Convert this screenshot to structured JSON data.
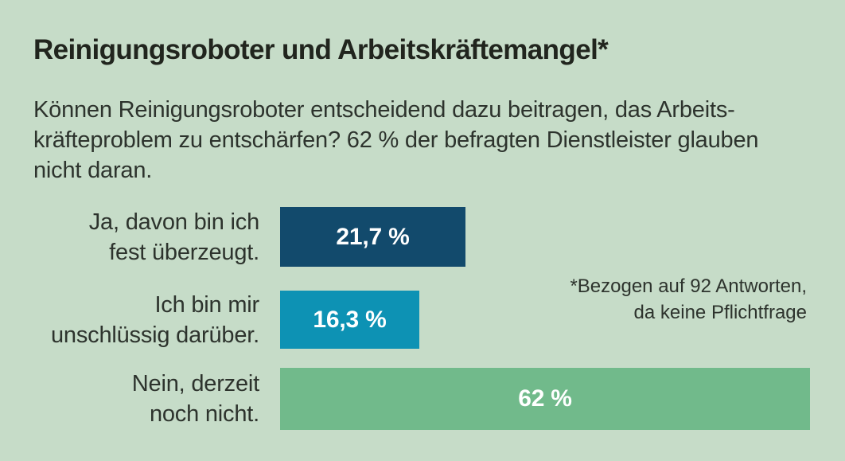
{
  "header": {
    "title": "Reinigungsroboter und Arbeitskräftemangel*",
    "subtitle_lines": [
      "Können Reinigungsroboter entscheidend dazu beitragen, das Arbeits-",
      "kräfteproblem zu entschärfen? 62 % der befragten Dienstleister glauben",
      "nicht daran."
    ]
  },
  "chart_data": {
    "type": "bar",
    "orientation": "horizontal",
    "title": "Reinigungsroboter und Arbeitskräftemangel*",
    "categories": [
      "Ja, davon bin ich fest überzeugt.",
      "Ich bin mir unschlüssig darüber.",
      "Nein, derzeit noch nicht."
    ],
    "values": [
      21.7,
      16.3,
      62
    ],
    "value_labels": [
      "21,7 %",
      "16,3 %",
      "62 %"
    ],
    "xlim": [
      0,
      62
    ],
    "bar_colors": [
      "#124a6c",
      "#0d92b4",
      "#71ba8b"
    ],
    "rows": [
      {
        "label_lines": [
          "Ja, davon bin ich",
          "fest überzeugt."
        ],
        "value": 21.7,
        "value_label": "21,7 %",
        "color": "#124a6c"
      },
      {
        "label_lines": [
          "Ich bin mir",
          "unschlüssig darüber."
        ],
        "value": 16.3,
        "value_label": "16,3 %",
        "color": "#0d92b4"
      },
      {
        "label_lines": [
          "Nein, derzeit",
          "noch nicht."
        ],
        "value": 62,
        "value_label": "62 %",
        "color": "#71ba8b"
      }
    ]
  },
  "footnote": {
    "lines": [
      "*Bezogen auf 92 Antworten,",
      "da keine Pflichtfrage"
    ]
  },
  "colors": {
    "background": "#c6dcc8",
    "title_text": "#21251e",
    "body_text": "#2d332d",
    "bar_value_text": "#ffffff"
  }
}
